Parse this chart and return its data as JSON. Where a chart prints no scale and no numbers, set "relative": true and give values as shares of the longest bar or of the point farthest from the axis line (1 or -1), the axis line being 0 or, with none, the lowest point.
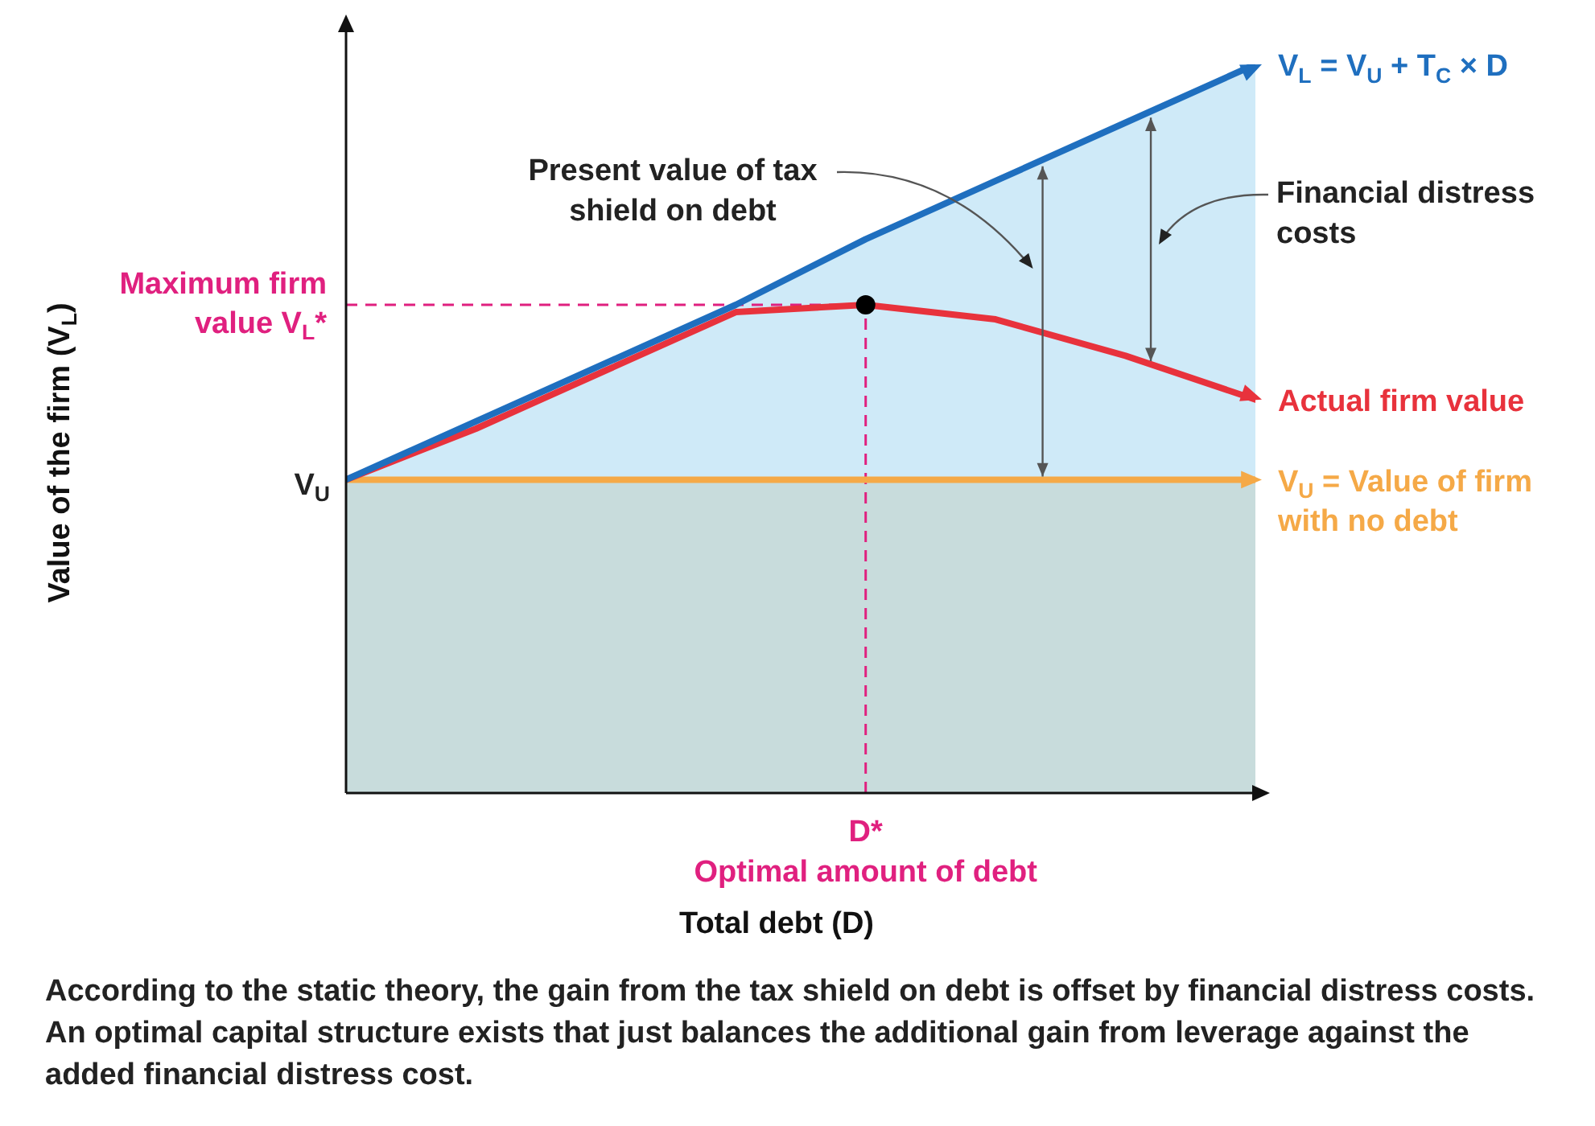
{
  "chart_data": {
    "type": "line",
    "relative": true,
    "xlabel": "Total debt (D)",
    "bands": [
      {
        "axis": "y",
        "from": 0,
        "to": 0.43,
        "color": "#c8dcdc"
      }
    ],
    "categories": [
      null,
      null,
      null,
      null,
      null,
      null,
      null,
      null
    ],
    "legend": "right",
    "marker": "none",
    "series": [
      {
        "name": "V$_{L}$ = V$_{U}$ + T$_{C}$ × D",
        "color": "#1f6fbf",
        "values": [
          0.43,
          0.51,
          0.59,
          0.67,
          0.76,
          0.84,
          0.92,
          1
        ]
      },
      {
        "name": "Actual firm value",
        "color": "#e8323c",
        "values": [
          0.43,
          0.5,
          0.58,
          0.66,
          0.67,
          0.65,
          0.6,
          0.54
        ]
      },
      {
        "name": "V$_{U}$ = Value of firm with no debt",
        "color": "#f5a947",
        "values": [
          0.43,
          0.43,
          0.43,
          0.43,
          0.43,
          0.43,
          0.43,
          0.43
        ]
      }
    ],
    "annotations": [
      "Present value of tax shield on debt",
      "Financial distress costs",
      "V$_{U}$",
      "Maximum firm value V$_{L}$*",
      "D*\nOptimal amount of debt",
      "Value of the firm (V$_{L}$)",
      "According to the static theory, the gain from the tax shield on debt is offset by financial distress costs. An optimal capital structure exists that just balances the additional gain from leverage against the added financial distress cost."
    ]
  }
}
